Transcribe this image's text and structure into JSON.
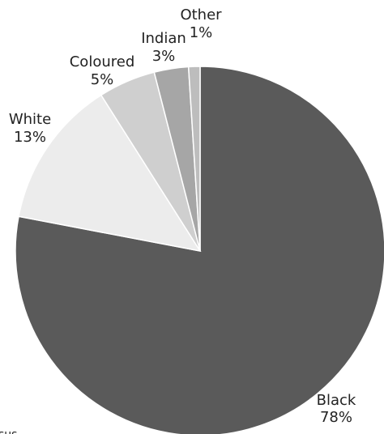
{
  "chart_data": {
    "type": "pie",
    "start": "top",
    "direction": "clockwise",
    "slices": [
      {
        "name": "Black",
        "value": 78,
        "label": "78%",
        "color": "#5a5a5a"
      },
      {
        "name": "White",
        "value": 13,
        "label": "13%",
        "color": "#ececec"
      },
      {
        "name": "Coloured",
        "value": 5,
        "label": "5%",
        "color": "#cfcfcf"
      },
      {
        "name": "Indian",
        "value": 3,
        "label": "3%",
        "color": "#a6a6a6"
      },
      {
        "name": "Other",
        "value": 1,
        "label": "1%",
        "color": "#bdbdbd"
      }
    ],
    "footnote": "sus"
  }
}
